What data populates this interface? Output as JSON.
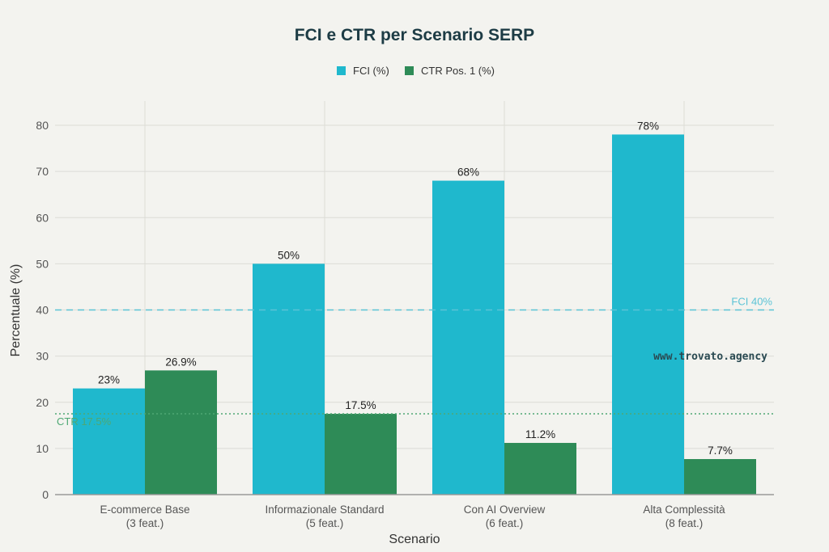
{
  "chart_data": {
    "type": "bar",
    "title": "FCI e CTR per Scenario SERP",
    "xlabel": "Scenario",
    "ylabel": "Percentuale (%)",
    "ylim": [
      0,
      85
    ],
    "yticks": [
      0,
      10,
      20,
      30,
      40,
      50,
      60,
      70,
      80
    ],
    "grid": true,
    "legend_position": "top",
    "categories": [
      [
        "E-commerce Base",
        "(3 feat.)"
      ],
      [
        "Informazionale Standard",
        "(5 feat.)"
      ],
      [
        "Con AI Overview",
        "(6 feat.)"
      ],
      [
        "Alta Complessità",
        "(8 feat.)"
      ]
    ],
    "series": [
      {
        "name": "FCI (%)",
        "color": "#1fb8cd",
        "values": [
          23,
          50,
          68,
          78
        ],
        "labels": [
          "23%",
          "50%",
          "68%",
          "78%"
        ]
      },
      {
        "name": "CTR Pos. 1 (%)",
        "color": "#2e8b57",
        "values": [
          26.9,
          17.5,
          11.2,
          7.7
        ],
        "labels": [
          "26.9%",
          "17.5%",
          "11.2%",
          "7.7%"
        ]
      }
    ],
    "reference_lines": [
      {
        "label": "FCI 40%",
        "value": 40,
        "color": "#5bc3d6",
        "style": "dashed"
      },
      {
        "label": "CTR 17.5%",
        "value": 17.5,
        "color": "#4ea874",
        "style": "dotted"
      }
    ],
    "watermark": "www.trovato.agency"
  }
}
